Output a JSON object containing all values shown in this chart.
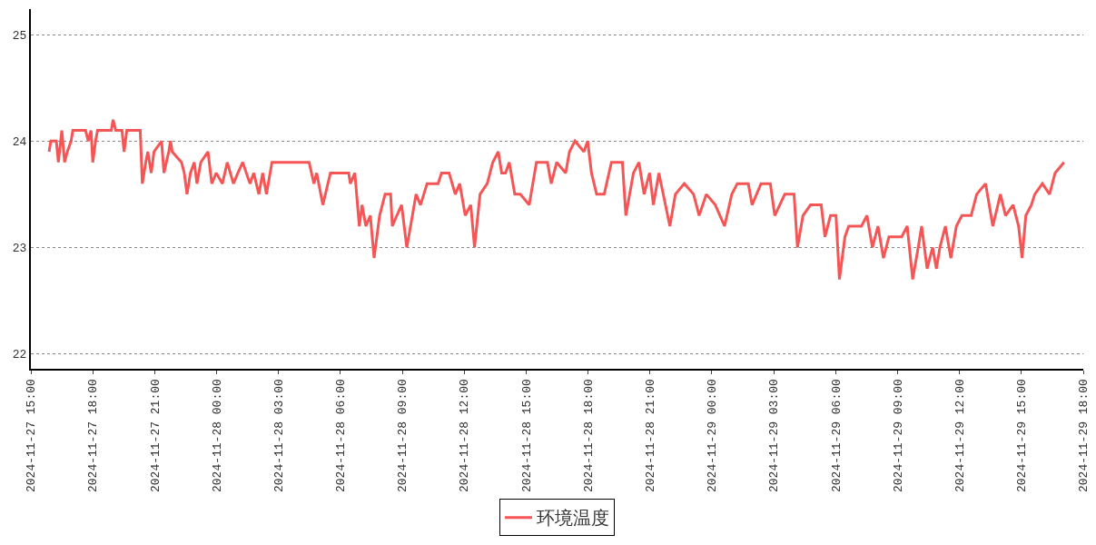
{
  "chart_data": {
    "type": "line",
    "legend": "bottom",
    "grid": "y",
    "line_style": "solid",
    "marker": "none",
    "xlim": [
      "2024-11-27T15:00",
      "2024-11-29T18:00"
    ],
    "xticks": [
      {
        "value": "2024-11-27T15:00",
        "label": "2024-11-27 15:00"
      },
      {
        "value": "2024-11-27T18:00",
        "label": "2024-11-27 18:00"
      },
      {
        "value": "2024-11-27T21:00",
        "label": "2024-11-27 21:00"
      },
      {
        "value": "2024-11-28T00:00",
        "label": "2024-11-28 00:00"
      },
      {
        "value": "2024-11-28T03:00",
        "label": "2024-11-28 03:00"
      },
      {
        "value": "2024-11-28T06:00",
        "label": "2024-11-28 06:00"
      },
      {
        "value": "2024-11-28T09:00",
        "label": "2024-11-28 09:00"
      },
      {
        "value": "2024-11-28T12:00",
        "label": "2024-11-28 12:00"
      },
      {
        "value": "2024-11-28T15:00",
        "label": "2024-11-28 15:00"
      },
      {
        "value": "2024-11-28T18:00",
        "label": "2024-11-28 18:00"
      },
      {
        "value": "2024-11-28T21:00",
        "label": "2024-11-28 21:00"
      },
      {
        "value": "2024-11-29T00:00",
        "label": "2024-11-29 00:00"
      },
      {
        "value": "2024-11-29T03:00",
        "label": "2024-11-29 03:00"
      },
      {
        "value": "2024-11-29T06:00",
        "label": "2024-11-29 06:00"
      },
      {
        "value": "2024-11-29T09:00",
        "label": "2024-11-29 09:00"
      },
      {
        "value": "2024-11-29T12:00",
        "label": "2024-11-29 12:00"
      },
      {
        "value": "2024-11-29T15:00",
        "label": "2024-11-29 15:00"
      },
      {
        "value": "2024-11-29T18:00",
        "label": "2024-11-29 18:00"
      }
    ],
    "ylim": [
      21.86,
      25.24
    ],
    "yticks": [
      22,
      23,
      24,
      25
    ],
    "x": [
      "2024-11-27T15:53",
      "2024-11-27T15:58",
      "2024-11-27T16:14",
      "2024-11-27T16:20",
      "2024-11-27T16:30",
      "2024-11-27T16:38",
      "2024-11-27T16:46",
      "2024-11-27T16:57",
      "2024-11-27T17:02",
      "2024-11-27T17:39",
      "2024-11-27T17:47",
      "2024-11-27T17:55",
      "2024-11-27T18:00",
      "2024-11-27T18:08",
      "2024-11-27T18:14",
      "2024-11-27T18:54",
      "2024-11-27T18:59",
      "2024-11-27T19:07",
      "2024-11-27T19:25",
      "2024-11-27T19:31",
      "2024-11-27T19:39",
      "2024-11-27T20:18",
      "2024-11-27T20:24",
      "2024-11-27T20:34",
      "2024-11-27T20:40",
      "2024-11-27T20:50",
      "2024-11-27T20:58",
      "2024-11-27T21:20",
      "2024-11-27T21:27",
      "2024-11-27T21:41",
      "2024-11-27T21:46",
      "2024-11-27T21:51",
      "2024-11-27T22:18",
      "2024-11-27T22:26",
      "2024-11-27T22:34",
      "2024-11-27T22:44",
      "2024-11-27T22:55",
      "2024-11-27T23:03",
      "2024-11-27T23:14",
      "2024-11-27T23:35",
      "2024-11-27T23:46",
      "2024-11-27T23:59",
      "2024-11-28T00:17",
      "2024-11-28T00:31",
      "2024-11-28T00:49",
      "2024-11-28T01:02",
      "2024-11-28T01:16",
      "2024-11-28T01:37",
      "2024-11-28T01:48",
      "2024-11-28T02:03",
      "2024-11-28T02:14",
      "2024-11-28T02:25",
      "2024-11-28T02:41",
      "2024-11-28T04:29",
      "2024-11-28T04:43",
      "2024-11-28T04:51",
      "2024-11-28T05:09",
      "2024-11-28T05:31",
      "2024-11-28T06:24",
      "2024-11-28T06:29",
      "2024-11-28T06:42",
      "2024-11-28T06:55",
      "2024-11-28T07:03",
      "2024-11-28T07:14",
      "2024-11-28T07:27",
      "2024-11-28T07:38",
      "2024-11-28T07:54",
      "2024-11-28T08:10",
      "2024-11-28T08:26",
      "2024-11-28T08:31",
      "2024-11-28T08:44",
      "2024-11-28T08:58",
      "2024-11-28T09:13",
      "2024-11-28T09:24",
      "2024-11-28T09:40",
      "2024-11-28T09:53",
      "2024-11-28T10:12",
      "2024-11-28T10:44",
      "2024-11-28T10:54",
      "2024-11-28T11:16",
      "2024-11-28T11:34",
      "2024-11-28T11:47",
      "2024-11-28T12:03",
      "2024-11-28T12:19",
      "2024-11-28T12:30",
      "2024-11-28T12:46",
      "2024-11-28T13:07",
      "2024-11-28T13:23",
      "2024-11-28T13:39",
      "2024-11-28T13:49",
      "2024-11-28T14:00",
      "2024-11-28T14:11",
      "2024-11-28T14:27",
      "2024-11-28T14:43",
      "2024-11-28T15:09",
      "2024-11-28T15:30",
      "2024-11-28T16:02",
      "2024-11-28T16:13",
      "2024-11-28T16:29",
      "2024-11-28T16:55",
      "2024-11-28T17:06",
      "2024-11-28T17:22",
      "2024-11-28T17:48",
      "2024-11-28T17:59",
      "2024-11-28T18:10",
      "2024-11-28T18:25",
      "2024-11-28T18:47",
      "2024-11-28T19:08",
      "2024-11-28T19:40",
      "2024-11-28T19:50",
      "2024-11-28T20:12",
      "2024-11-28T20:28",
      "2024-11-28T20:43",
      "2024-11-28T20:59",
      "2024-11-28T21:10",
      "2024-11-28T21:26",
      "2024-11-28T21:58",
      "2024-11-28T22:14",
      "2024-11-28T22:40",
      "2024-11-28T23:07",
      "2024-11-28T23:23",
      "2024-11-28T23:44",
      "2024-11-29T00:10",
      "2024-11-29T00:37",
      "2024-11-29T00:58",
      "2024-11-29T01:14",
      "2024-11-29T01:46",
      "2024-11-29T01:57",
      "2024-11-29T02:23",
      "2024-11-29T02:50",
      "2024-11-29T03:03",
      "2024-11-29T03:32",
      "2024-11-29T03:59",
      "2024-11-29T04:09",
      "2024-11-29T04:25",
      "2024-11-29T04:47",
      "2024-11-29T05:18",
      "2024-11-29T05:29",
      "2024-11-29T05:45",
      "2024-11-29T06:01",
      "2024-11-29T06:11",
      "2024-11-29T06:27",
      "2024-11-29T06:38",
      "2024-11-29T07:15",
      "2024-11-29T07:31",
      "2024-11-29T07:47",
      "2024-11-29T08:03",
      "2024-11-29T08:19",
      "2024-11-29T08:35",
      "2024-11-29T09:12",
      "2024-11-29T09:28",
      "2024-11-29T09:44",
      "2024-11-29T10:00",
      "2024-11-29T10:10",
      "2024-11-29T10:26",
      "2024-11-29T10:42",
      "2024-11-29T10:53",
      "2024-11-29T11:03",
      "2024-11-29T11:19",
      "2024-11-29T11:35",
      "2024-11-29T11:51",
      "2024-11-29T12:07",
      "2024-11-29T12:34",
      "2024-11-29T12:50",
      "2024-11-29T13:16",
      "2024-11-29T13:37",
      "2024-11-29T13:59",
      "2024-11-29T14:14",
      "2024-11-29T14:36",
      "2024-11-29T14:52",
      "2024-11-29T15:02",
      "2024-11-29T15:13",
      "2024-11-29T15:29",
      "2024-11-29T15:39",
      "2024-11-29T16:01",
      "2024-11-29T16:22",
      "2024-11-29T16:38",
      "2024-11-29T17:04"
    ],
    "series": [
      {
        "name": "环境温度",
        "color": "#f55555",
        "values": [
          23.9,
          24.0,
          24.0,
          23.8,
          24.1,
          23.8,
          23.9,
          24.0,
          24.1,
          24.1,
          24.0,
          24.1,
          23.8,
          24.0,
          24.1,
          24.1,
          24.2,
          24.1,
          24.1,
          23.9,
          24.1,
          24.1,
          23.6,
          23.8,
          23.9,
          23.7,
          23.9,
          24.0,
          23.7,
          23.9,
          24.0,
          23.9,
          23.8,
          23.7,
          23.5,
          23.7,
          23.8,
          23.6,
          23.8,
          23.9,
          23.6,
          23.7,
          23.6,
          23.8,
          23.6,
          23.7,
          23.8,
          23.6,
          23.7,
          23.5,
          23.7,
          23.5,
          23.8,
          23.8,
          23.6,
          23.7,
          23.4,
          23.7,
          23.7,
          23.6,
          23.7,
          23.2,
          23.4,
          23.2,
          23.3,
          22.9,
          23.3,
          23.5,
          23.5,
          23.2,
          23.3,
          23.4,
          23.0,
          23.2,
          23.5,
          23.4,
          23.6,
          23.6,
          23.7,
          23.7,
          23.5,
          23.6,
          23.3,
          23.4,
          23.0,
          23.5,
          23.6,
          23.8,
          23.9,
          23.7,
          23.7,
          23.8,
          23.5,
          23.5,
          23.4,
          23.8,
          23.8,
          23.6,
          23.8,
          23.7,
          23.9,
          24.0,
          23.9,
          24.0,
          23.7,
          23.5,
          23.5,
          23.8,
          23.8,
          23.3,
          23.7,
          23.8,
          23.5,
          23.7,
          23.4,
          23.7,
          23.2,
          23.5,
          23.6,
          23.5,
          23.3,
          23.5,
          23.4,
          23.2,
          23.5,
          23.6,
          23.6,
          23.4,
          23.6,
          23.6,
          23.3,
          23.5,
          23.5,
          23.0,
          23.3,
          23.4,
          23.4,
          23.1,
          23.3,
          23.3,
          22.7,
          23.1,
          23.2,
          23.2,
          23.3,
          23.0,
          23.2,
          22.9,
          23.1,
          23.1,
          23.2,
          22.7,
          23.0,
          23.2,
          22.8,
          23.0,
          22.8,
          23.0,
          23.2,
          22.9,
          23.2,
          23.3,
          23.3,
          23.5,
          23.6,
          23.2,
          23.5,
          23.3,
          23.4,
          23.2,
          22.9,
          23.3,
          23.4,
          23.5,
          23.6,
          23.5,
          23.7,
          23.8
        ]
      }
    ]
  }
}
